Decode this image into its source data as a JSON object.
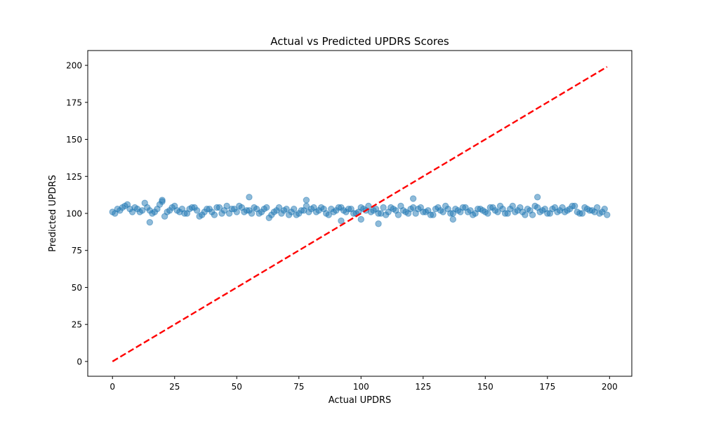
{
  "chart_data": {
    "type": "scatter",
    "title": "Actual vs Predicted UPDRS Scores",
    "xlabel": "Actual UPDRS",
    "ylabel": "Predicted UPDRS",
    "xlim": [
      -9.95,
      208.95
    ],
    "ylim": [
      -10,
      210
    ],
    "xticks": [
      0,
      25,
      50,
      75,
      100,
      125,
      150,
      175,
      200
    ],
    "yticks": [
      0,
      25,
      50,
      75,
      100,
      125,
      150,
      175,
      200
    ],
    "grid": false,
    "point_color": "#1f77b4",
    "point_alpha": 0.5,
    "reference_line": {
      "x": [
        0,
        199
      ],
      "y": [
        0,
        199
      ],
      "color": "#ff0000",
      "style": "dashed"
    },
    "series": [
      {
        "x": [
          0,
          2,
          4,
          6,
          8,
          10,
          12,
          14,
          16,
          18,
          20,
          22,
          24,
          26,
          28,
          30,
          32,
          34,
          36,
          38,
          40,
          42,
          44,
          46,
          48,
          50,
          52,
          54,
          56,
          58,
          60,
          62,
          64,
          66,
          68,
          70,
          72,
          74,
          76,
          78,
          80,
          82,
          84,
          86,
          88,
          90,
          92,
          94,
          96,
          98,
          100,
          102,
          104,
          106,
          108,
          110,
          112,
          114,
          116,
          118,
          120,
          122,
          124,
          126,
          128,
          130,
          132,
          134,
          136,
          138,
          140,
          142,
          144,
          146,
          148,
          150,
          152,
          154,
          156,
          158,
          160,
          162,
          164,
          166,
          168,
          170,
          172,
          174,
          176,
          178,
          180,
          182,
          184,
          186,
          188,
          190,
          192,
          194,
          196,
          198,
          1,
          3,
          5,
          7,
          9,
          11,
          13,
          15,
          17,
          19,
          21,
          23,
          25,
          27,
          29,
          31,
          33,
          35,
          37,
          39,
          41,
          43,
          45,
          47,
          49,
          51,
          53,
          55,
          57,
          59,
          61,
          63,
          65,
          67,
          69,
          71,
          73,
          75,
          77,
          79,
          81,
          83,
          85,
          87,
          89,
          91,
          93,
          95,
          97,
          99,
          101,
          103,
          105,
          107,
          109,
          111,
          113,
          115,
          117,
          119,
          121,
          123,
          125,
          127,
          129,
          131,
          133,
          135,
          137,
          139,
          141,
          143,
          145,
          147,
          149,
          151,
          153,
          155,
          157,
          159,
          161,
          163,
          165,
          167,
          169,
          171,
          173,
          175,
          177,
          179,
          181,
          183,
          185,
          187,
          189,
          191,
          193,
          195,
          197,
          199,
          15,
          20,
          55,
          78,
          92,
          100,
          107,
          121,
          137,
          171
        ],
        "y": [
          101,
          103,
          104,
          106,
          101,
          103,
          102,
          104,
          100,
          103,
          108,
          101,
          104,
          102,
          103,
          100,
          104,
          102,
          99,
          103,
          101,
          104,
          100,
          105,
          103,
          101,
          104,
          102,
          100,
          103,
          101,
          104,
          99,
          102,
          100,
          103,
          101,
          99,
          102,
          105,
          103,
          101,
          104,
          100,
          103,
          102,
          104,
          101,
          103,
          100,
          104,
          102,
          101,
          103,
          100,
          99,
          104,
          102,
          105,
          101,
          103,
          100,
          104,
          101,
          99,
          103,
          102,
          105,
          100,
          103,
          101,
          104,
          102,
          100,
          103,
          101,
          104,
          102,
          105,
          100,
          103,
          101,
          104,
          99,
          102,
          105,
          101,
          103,
          100,
          104,
          102,
          101,
          103,
          105,
          100,
          104,
          102,
          101,
          100,
          103,
          100,
          102,
          105,
          103,
          104,
          101,
          107,
          102,
          101,
          106,
          98,
          102,
          105,
          101,
          100,
          103,
          104,
          98,
          101,
          103,
          99,
          104,
          102,
          100,
          103,
          105,
          101,
          102,
          104,
          100,
          103,
          97,
          101,
          104,
          102,
          99,
          103,
          100,
          102,
          101,
          104,
          102,
          103,
          99,
          101,
          104,
          102,
          103,
          100,
          101,
          103,
          105,
          102,
          100,
          104,
          101,
          103,
          99,
          102,
          100,
          104,
          103,
          101,
          102,
          99,
          104,
          101,
          103,
          100,
          102,
          104,
          101,
          99,
          103,
          102,
          100,
          104,
          101,
          103,
          100,
          105,
          102,
          101,
          103,
          99,
          104,
          102,
          100,
          103,
          101,
          104,
          102,
          105,
          101,
          100,
          103,
          102,
          104,
          101,
          99,
          94,
          109,
          111,
          109,
          95,
          96,
          93,
          110,
          96,
          111
        ]
      }
    ]
  }
}
